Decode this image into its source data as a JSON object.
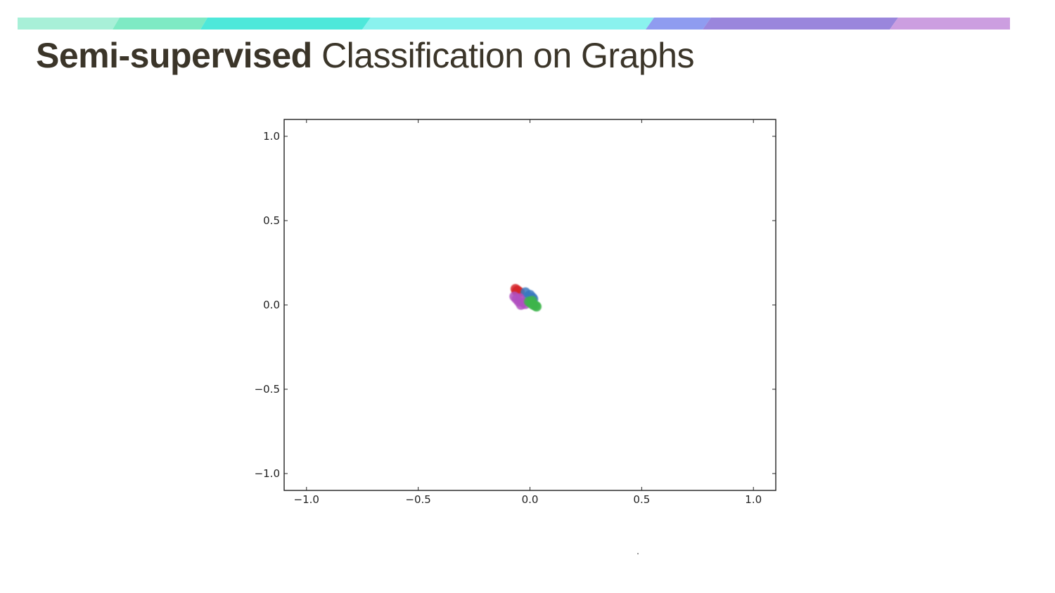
{
  "slide": {
    "title_bold": "Semi-supervised",
    "title_light": " Classification on Graphs",
    "title_color": "#3b3529",
    "band_colors": [
      "#a8f0d8",
      "#7eeac4",
      "#4ee8da",
      "#8af2ee",
      "#8f9cf0",
      "#9a86dc",
      "#cc9ee0"
    ]
  },
  "chart_data": {
    "type": "scatter",
    "title": "",
    "xlabel": "",
    "ylabel": "",
    "xlim": [
      -1.1,
      1.1
    ],
    "ylim": [
      -1.1,
      1.1
    ],
    "grid": false,
    "legend": "none",
    "x_ticks": [
      {
        "value": -1.0,
        "label": "−1.0"
      },
      {
        "value": -0.5,
        "label": "−0.5"
      },
      {
        "value": 0.0,
        "label": "0.0"
      },
      {
        "value": 0.5,
        "label": "0.5"
      },
      {
        "value": 1.0,
        "label": "1.0"
      }
    ],
    "y_ticks": [
      {
        "value": 1.0,
        "label": "1.0"
      },
      {
        "value": 0.5,
        "label": "0.5"
      },
      {
        "value": 0.0,
        "label": "0.0"
      },
      {
        "value": -0.5,
        "label": "−0.5"
      },
      {
        "value": -1.0,
        "label": "−1.0"
      }
    ],
    "series": [
      {
        "color": "#d62728",
        "points": [
          [
            -0.065,
            0.095
          ],
          [
            -0.055,
            0.085
          ],
          [
            -0.045,
            0.075
          ],
          [
            -0.06,
            0.08
          ]
        ]
      },
      {
        "color": "#3a78c0",
        "points": [
          [
            -0.02,
            0.075
          ],
          [
            0.0,
            0.06
          ],
          [
            0.01,
            0.045
          ],
          [
            0.015,
            0.035
          ],
          [
            -0.01,
            0.05
          ]
        ]
      },
      {
        "color": "#b050c0",
        "points": [
          [
            -0.07,
            0.05
          ],
          [
            -0.06,
            0.035
          ],
          [
            -0.05,
            0.02
          ],
          [
            -0.04,
            0.0
          ],
          [
            -0.03,
            0.015
          ],
          [
            -0.045,
            0.04
          ],
          [
            -0.02,
            0.005
          ]
        ]
      },
      {
        "color": "#3cb44b",
        "points": [
          [
            -0.005,
            0.02
          ],
          [
            0.005,
            0.01
          ],
          [
            0.015,
            0.0
          ],
          [
            0.025,
            -0.005
          ],
          [
            0.01,
            0.025
          ],
          [
            0.03,
            -0.01
          ]
        ]
      }
    ]
  }
}
